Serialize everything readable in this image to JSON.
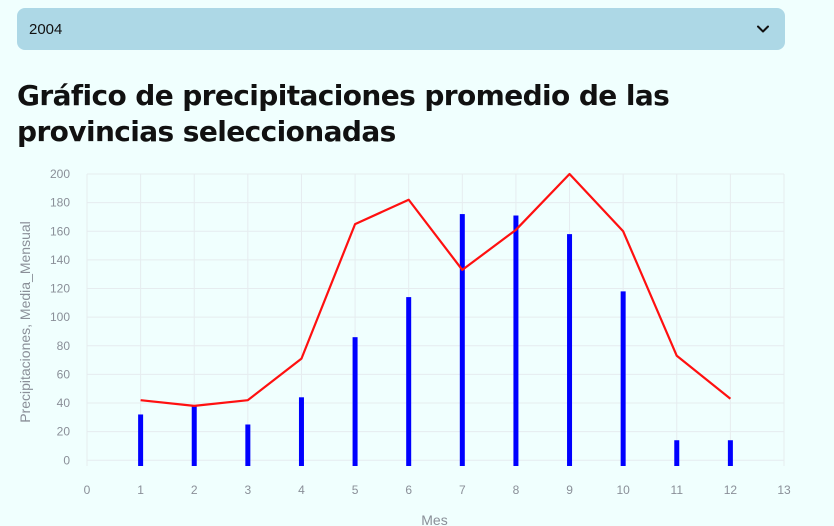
{
  "year_select": {
    "value": "2004",
    "icon": "chevron-down-icon"
  },
  "title": "Gráfico de precipitaciones promedio de las provincias seleccionadas",
  "colors": {
    "bar": "#0000ff",
    "line": "#ff1010",
    "grid": "#e6ecef",
    "select_bg": "#add8e6"
  },
  "chart_data": {
    "type": "bar",
    "xlabel": "Mes",
    "ylabel": "Precipitaciones, Media_Mensual",
    "xlim": [
      0,
      13
    ],
    "ylim": [
      -4,
      200
    ],
    "xticks": [
      0,
      1,
      2,
      3,
      4,
      5,
      6,
      7,
      8,
      9,
      10,
      11,
      12,
      13
    ],
    "yticks": [
      0,
      20,
      40,
      60,
      80,
      100,
      120,
      140,
      160,
      180,
      200
    ],
    "grid": true,
    "x": [
      1,
      2,
      3,
      4,
      5,
      6,
      7,
      8,
      9,
      10,
      11,
      12
    ],
    "series": [
      {
        "type": "bar",
        "values": [
          32,
          38,
          25,
          44,
          86,
          114,
          172,
          171,
          158,
          118,
          14,
          14
        ]
      },
      {
        "type": "line",
        "values": [
          42,
          38,
          42,
          71,
          165,
          182,
          133,
          161,
          200,
          160,
          73,
          43
        ]
      }
    ]
  }
}
